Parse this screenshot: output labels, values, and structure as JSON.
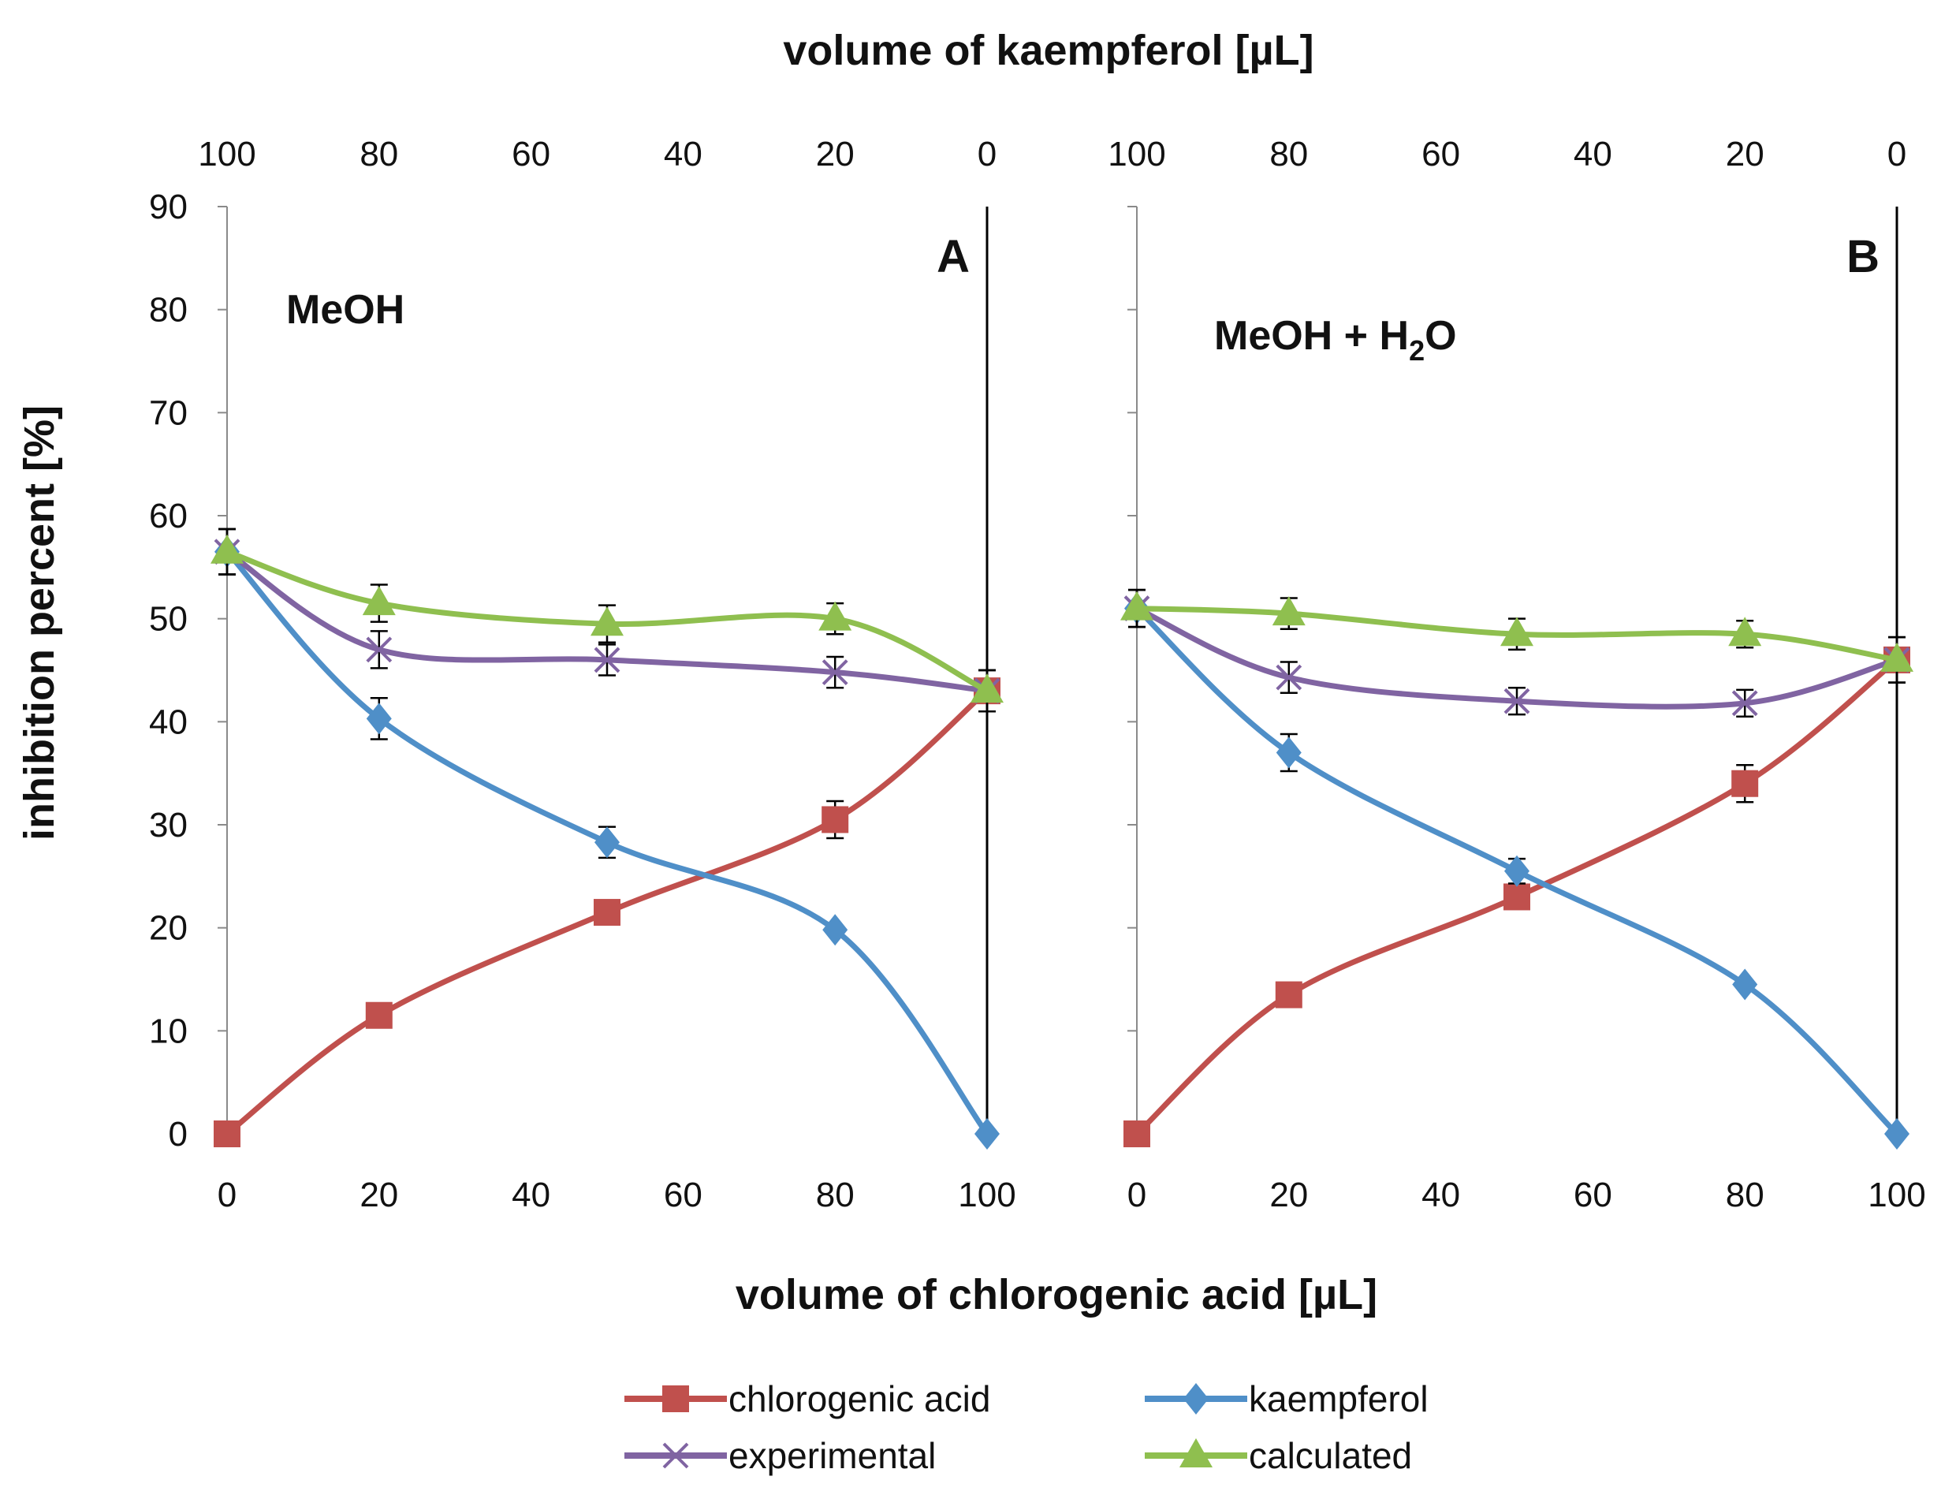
{
  "chart_data": {
    "type": "line",
    "top_xlabel": "volume of kaempferol [µL]",
    "xlabel": "volume of chlorogenic acid [µL]",
    "ylabel": "inhibition percent [%]",
    "xlim": [
      0,
      100
    ],
    "ylim": [
      0,
      90
    ],
    "x_ticks": [
      "0",
      "20",
      "40",
      "60",
      "80",
      "100"
    ],
    "top_x_ticks": [
      "100",
      "80",
      "60",
      "40",
      "20",
      "0"
    ],
    "y_ticks": [
      "0",
      "10",
      "20",
      "30",
      "40",
      "50",
      "60",
      "70",
      "80",
      "90"
    ],
    "x": [
      0,
      20,
      50,
      80,
      100
    ],
    "panels": [
      {
        "label": "A",
        "solvent": {
          "text": "MeOH",
          "sub": "",
          "tail": ""
        },
        "series": [
          {
            "name": "chlorogenic acid",
            "color": "#c0504d",
            "marker": "square",
            "values": [
              0,
              11.5,
              21.5,
              30.5,
              43
            ],
            "errors": [
              0,
              0,
              0,
              1.8,
              2.0
            ]
          },
          {
            "name": "kaempferol",
            "color": "#4f8fc8",
            "marker": "diamond",
            "values": [
              56.5,
              40.3,
              28.3,
              19.8,
              0
            ],
            "errors": [
              2.2,
              2.0,
              1.5,
              0,
              0
            ]
          },
          {
            "name": "experimental",
            "color": "#8064a2",
            "marker": "x",
            "values": [
              56.5,
              47,
              46,
              44.8,
              43
            ],
            "errors": [
              2.2,
              1.8,
              1.5,
              1.5,
              2.0
            ]
          },
          {
            "name": "calculated",
            "color": "#8fbf4f",
            "marker": "triangle",
            "values": [
              56.5,
              51.5,
              49.5,
              50,
              43
            ],
            "errors": [
              2.2,
              1.8,
              1.8,
              1.5,
              2.0
            ]
          }
        ]
      },
      {
        "label": "B",
        "solvent": {
          "text": "MeOH + H",
          "sub": "2",
          "tail": "O"
        },
        "series": [
          {
            "name": "chlorogenic acid",
            "color": "#c0504d",
            "marker": "square",
            "values": [
              0,
              13.5,
              23,
              34,
              46
            ],
            "errors": [
              0,
              0,
              0,
              1.8,
              2.2
            ]
          },
          {
            "name": "kaempferol",
            "color": "#4f8fc8",
            "marker": "diamond",
            "values": [
              51,
              37,
              25.5,
              14.5,
              0
            ],
            "errors": [
              1.8,
              1.8,
              1.2,
              0,
              0
            ]
          },
          {
            "name": "experimental",
            "color": "#8064a2",
            "marker": "x",
            "values": [
              51,
              44.3,
              42,
              41.8,
              46
            ],
            "errors": [
              1.8,
              1.5,
              1.3,
              1.3,
              2.2
            ]
          },
          {
            "name": "calculated",
            "color": "#8fbf4f",
            "marker": "triangle",
            "values": [
              51,
              50.5,
              48.5,
              48.5,
              46
            ],
            "errors": [
              1.8,
              1.5,
              1.5,
              1.3,
              2.2
            ]
          }
        ]
      }
    ],
    "legend": [
      "chlorogenic acid",
      "kaempferol",
      "experimental",
      "calculated"
    ]
  }
}
